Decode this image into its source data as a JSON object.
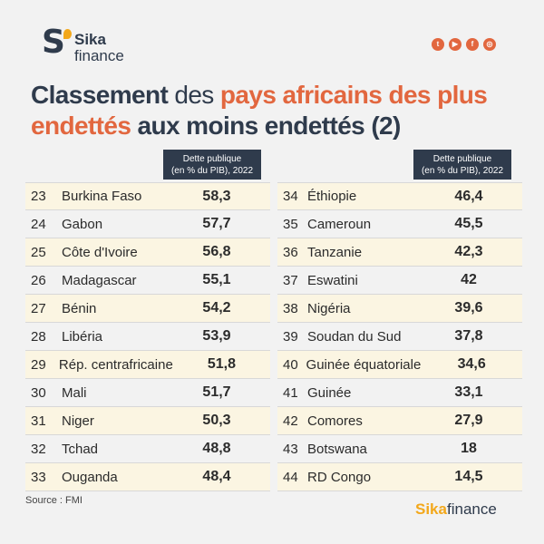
{
  "logo": {
    "mark": "S",
    "line1": "Sika",
    "line2": "finance"
  },
  "socials": [
    {
      "icon": "twitter-icon",
      "glyph": "t"
    },
    {
      "icon": "youtube-icon",
      "glyph": "▶"
    },
    {
      "icon": "facebook-icon",
      "glyph": "f"
    },
    {
      "icon": "instagram-icon",
      "glyph": "◎"
    }
  ],
  "title": {
    "part1": "Classement",
    "part2": " des ",
    "part3": "pays africains des plus endettés",
    "part4": " aux moins endettés (2)"
  },
  "table_header": {
    "line1": "Dette publique",
    "line2": "(en % du PIB), 2022"
  },
  "left_rows": [
    {
      "rank": "23",
      "country": "Burkina Faso",
      "value": "58,3"
    },
    {
      "rank": "24",
      "country": "Gabon",
      "value": "57,7"
    },
    {
      "rank": "25",
      "country": "Côte d'Ivoire",
      "value": "56,8"
    },
    {
      "rank": "26",
      "country": "Madagascar",
      "value": "55,1"
    },
    {
      "rank": "27",
      "country": "Bénin",
      "value": "54,2"
    },
    {
      "rank": "28",
      "country": "Libéria",
      "value": "53,9"
    },
    {
      "rank": "29",
      "country": "Rép. centrafricaine",
      "value": "51,8"
    },
    {
      "rank": "30",
      "country": "Mali",
      "value": "51,7"
    },
    {
      "rank": "31",
      "country": "Niger",
      "value": "50,3"
    },
    {
      "rank": "32",
      "country": "Tchad",
      "value": "48,8"
    },
    {
      "rank": "33",
      "country": "Ouganda",
      "value": "48,4"
    }
  ],
  "right_rows": [
    {
      "rank": "34",
      "country": "Éthiopie",
      "value": "46,4"
    },
    {
      "rank": "35",
      "country": "Cameroun",
      "value": "45,5"
    },
    {
      "rank": "36",
      "country": "Tanzanie",
      "value": "42,3"
    },
    {
      "rank": "37",
      "country": "Eswatini",
      "value": "42"
    },
    {
      "rank": "38",
      "country": "Nigéria",
      "value": "39,6"
    },
    {
      "rank": "39",
      "country": "Soudan du Sud",
      "value": "37,8"
    },
    {
      "rank": "40",
      "country": "Guinée équatoriale",
      "value": "34,6"
    },
    {
      "rank": "41",
      "country": "Guinée",
      "value": "33,1"
    },
    {
      "rank": "42",
      "country": "Comores",
      "value": "27,9"
    },
    {
      "rank": "43",
      "country": "Botswana",
      "value": "18"
    },
    {
      "rank": "44",
      "country": "RD Congo",
      "value": "14,5"
    }
  ],
  "source": "Source : FMI",
  "brand": {
    "part1": "Sika",
    "part2": "finance"
  },
  "colors": {
    "navy": "#2f3b4c",
    "orange": "#e2673f",
    "gold": "#f3a81b",
    "row_alt": "#fbf5e2"
  }
}
